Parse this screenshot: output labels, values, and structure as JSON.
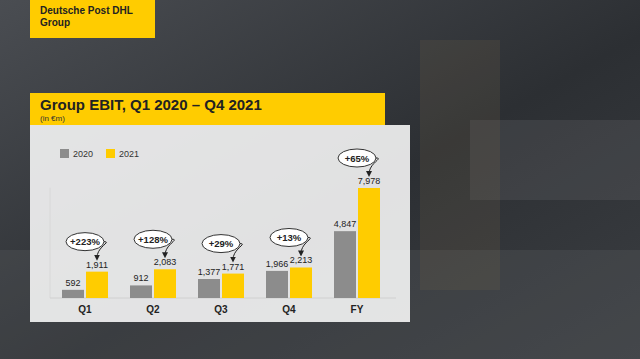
{
  "brand": "Deutsche Post DHL Group",
  "chart_data": {
    "type": "bar",
    "title": "Group EBIT, Q1 2020 – Q4 2021",
    "subtitle": "(in €m)",
    "categories": [
      "Q1",
      "Q2",
      "Q3",
      "Q4",
      "FY"
    ],
    "series": [
      {
        "name": "2020",
        "color": "#8c8c8c",
        "values": [
          592,
          912,
          1377,
          1966,
          4847
        ],
        "value_labels": [
          "592",
          "912",
          "1,377",
          "1,966",
          "4,847"
        ]
      },
      {
        "name": "2021",
        "color": "#ffcc00",
        "values": [
          1911,
          2083,
          1771,
          2213,
          7978
        ],
        "value_labels": [
          "1,911",
          "2,083",
          "1,771",
          "2,213",
          "7,978"
        ]
      }
    ],
    "annotations": [
      "+223%",
      "+128%",
      "+29%",
      "+13%",
      "+65%"
    ],
    "ylim": [
      0,
      8000
    ],
    "tick_labels": "x",
    "data_labels": true,
    "legend": "top-left",
    "grid": false
  }
}
